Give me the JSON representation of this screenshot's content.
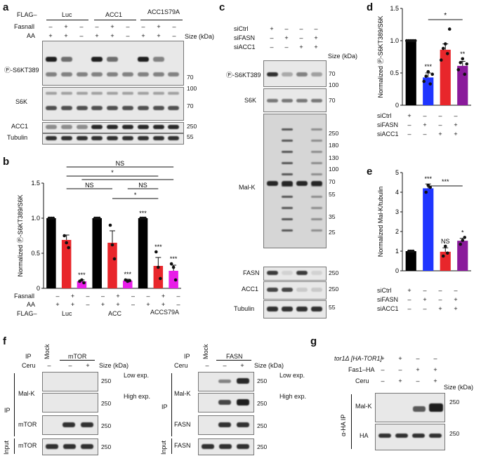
{
  "panels": [
    "a",
    "b",
    "c",
    "d",
    "e",
    "f",
    "g"
  ],
  "a": {
    "flag_label": "FLAG–",
    "groups": [
      "Luc",
      "ACC1",
      "ACC1S79A"
    ],
    "rows": [
      "Fasnall",
      "AA"
    ],
    "fasnall": [
      "–",
      "+",
      "–",
      "–",
      "+",
      "–",
      "–",
      "+",
      "–"
    ],
    "aa": [
      "+",
      "+",
      "–",
      "+",
      "+",
      "–",
      "+",
      "+",
      "–"
    ],
    "size_label": "Size (kDa)",
    "blots": [
      "Ⓟ-S6KT389",
      "S6K",
      "ACC1",
      "Tubulin"
    ],
    "markers": [
      "70",
      "100",
      "70",
      "250",
      "55"
    ]
  },
  "b": {
    "sig": [
      "NS",
      "*",
      "NS",
      "NS",
      "NS",
      "*"
    ],
    "fasnall": [
      "–",
      "+",
      "–",
      "–",
      "+",
      "–",
      "–",
      "+",
      "–"
    ],
    "aa": [
      "+",
      "+",
      "–",
      "+",
      "+",
      "–",
      "+",
      "+",
      "–"
    ],
    "groups": [
      "Luc",
      "ACC",
      "ACCS79A"
    ],
    "bar_stars": [
      "",
      "",
      "***",
      "",
      "",
      "***",
      "***",
      "***",
      "***"
    ]
  },
  "c": {
    "rows": [
      "siCtrl",
      "siFASN",
      "siACC1"
    ],
    "signs": [
      [
        "+",
        "–",
        "–",
        "–"
      ],
      [
        "–",
        "+",
        "–",
        "+"
      ],
      [
        "–",
        "–",
        "+",
        "+"
      ]
    ],
    "size_label": "Size (kDa)",
    "blots": [
      "Ⓟ-S6KT389",
      "S6K",
      "Mal-K",
      "FASN",
      "ACC1",
      "Tubulin"
    ],
    "markers": [
      "70",
      "100",
      "70",
      "250",
      "180",
      "130",
      "100",
      "70",
      "55",
      "35",
      "25",
      "250",
      "250",
      "55"
    ]
  },
  "d": {
    "rows": [
      "siCtrl",
      "siFASN",
      "siACC1"
    ],
    "signs": [
      [
        "+",
        "–",
        "–",
        "–"
      ],
      [
        "–",
        "+",
        "–",
        "+"
      ],
      [
        "–",
        "–",
        "+",
        "+"
      ]
    ],
    "stars": [
      "",
      "***",
      "",
      "**"
    ],
    "bracket": "*"
  },
  "e": {
    "rows": [
      "siCtrl",
      "siFASN",
      "siACC1"
    ],
    "signs": [
      [
        "+",
        "–",
        "–",
        "–"
      ],
      [
        "–",
        "+",
        "–",
        "+"
      ],
      [
        "–",
        "–",
        "+",
        "+"
      ]
    ],
    "stars": [
      "",
      "***",
      "NS",
      "*"
    ],
    "bracket": "***"
  },
  "f": {
    "left": {
      "ip_label": "IP",
      "mock": "Mock",
      "target": "mTOR",
      "ceru": "Ceru",
      "ceru_signs": [
        "–",
        "–",
        "+"
      ],
      "size_label": "Size (kDa)",
      "blots": [
        "Mal-K",
        "mTOR",
        "mTOR"
      ],
      "exp": [
        "Low exp.",
        "High exp."
      ],
      "markers": [
        "250",
        "250",
        "250",
        "250"
      ],
      "side": [
        "IP",
        "Input"
      ]
    },
    "right": {
      "ip_label": "IP",
      "mock": "Mock",
      "target": "FASN",
      "ceru": "Ceru",
      "ceru_signs": [
        "–",
        "–",
        "+"
      ],
      "size_label": "Size (kDa)",
      "blots": [
        "Mal-K",
        "FASN",
        "FASN"
      ],
      "exp": [
        "Low exp.",
        "High exp."
      ],
      "markers": [
        "250",
        "250",
        "250",
        "250"
      ],
      "side": [
        "IP",
        "Input"
      ]
    }
  },
  "g": {
    "rows": [
      "tor1Δ [HA-TOR1]",
      "Fas1–HA",
      "Ceru"
    ],
    "signs": [
      [
        "+",
        "+",
        "–",
        "–"
      ],
      [
        "–",
        "–",
        "+",
        "+"
      ],
      [
        "–",
        "+",
        "–",
        "+"
      ]
    ],
    "size_label": "Size (kDa)",
    "side": "α-HA IP",
    "blots": [
      "Mal-K",
      "HA"
    ],
    "markers": [
      "250",
      "250"
    ]
  },
  "chart_data": [
    {
      "type": "bar",
      "panel": "b",
      "categories": [
        "1",
        "2",
        "3",
        "4",
        "5",
        "6",
        "7",
        "8",
        "9"
      ],
      "values": [
        1.0,
        0.69,
        0.1,
        1.0,
        0.65,
        0.11,
        1.0,
        0.32,
        0.25
      ],
      "errors": [
        0,
        0.07,
        0.02,
        0,
        0.17,
        0.02,
        0,
        0.12,
        0.08
      ],
      "points": [
        [
          1,
          1,
          1
        ],
        [
          0.75,
          0.65,
          0.58
        ],
        [
          0.1,
          0.12,
          0.08
        ],
        [
          1,
          1,
          1
        ],
        [
          0.9,
          0.62,
          0.42
        ],
        [
          0.12,
          0.1,
          0.11
        ],
        [
          1,
          1,
          1
        ],
        [
          0.52,
          0.3,
          0.14
        ],
        [
          0.35,
          0.3,
          0.12
        ]
      ],
      "colors": [
        "#000000",
        "#e8262b",
        "#e81ee8",
        "#000000",
        "#e8262b",
        "#e81ee8",
        "#000000",
        "#e8262b",
        "#e81ee8"
      ],
      "ylabel": "Normalized Ⓟ-S6KT389/S6K",
      "yticks": [
        "0",
        "0.5",
        "1.0",
        "1.5"
      ],
      "ylim": [
        0,
        1.5
      ]
    },
    {
      "type": "bar",
      "panel": "d",
      "categories": [
        "1",
        "2",
        "3",
        "4"
      ],
      "values": [
        1.0,
        0.43,
        0.86,
        0.61
      ],
      "errors": [
        0,
        0.07,
        0.09,
        0.07
      ],
      "points": [
        [
          1,
          1,
          1,
          1,
          1
        ],
        [
          0.37,
          0.45,
          0.52,
          0.33,
          0.48
        ],
        [
          0.7,
          0.88,
          0.95,
          0.8,
          1.18
        ],
        [
          0.55,
          0.66,
          0.72,
          0.48,
          0.64
        ]
      ],
      "colors": [
        "#000000",
        "#1f35ff",
        "#e8262b",
        "#8a1a9b"
      ],
      "ylabel": "Normalized Ⓟ-S6KT389/S6K",
      "yticks": [
        "0",
        "0.5",
        "1.0",
        "1.5"
      ],
      "ylim": [
        0,
        1.5
      ]
    },
    {
      "type": "bar",
      "panel": "e",
      "categories": [
        "1",
        "2",
        "3",
        "4"
      ],
      "values": [
        1.0,
        4.2,
        0.97,
        1.53
      ],
      "errors": [
        0,
        0.22,
        0.2,
        0.12
      ],
      "points": [
        [
          1,
          1,
          1
        ],
        [
          4.0,
          4.35,
          4.25
        ],
        [
          0.75,
          1.25,
          0.9
        ],
        [
          1.35,
          1.55,
          1.7
        ]
      ],
      "colors": [
        "#000000",
        "#1f35ff",
        "#e8262b",
        "#8a1a9b"
      ],
      "ylabel": "Normalized Mal-K/tubulin",
      "yticks": [
        "0",
        "1",
        "2",
        "3",
        "4",
        "5"
      ],
      "ylim": [
        0,
        5
      ]
    }
  ]
}
